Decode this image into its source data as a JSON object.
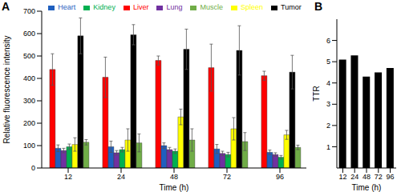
{
  "chart_data": [
    {
      "type": "bar",
      "title": "A",
      "x_label": "Time (h)",
      "y_label": "Relative fluorescence intensity",
      "categories": [
        "12",
        "24",
        "48",
        "72",
        "96"
      ],
      "ylim": [
        0,
        700
      ],
      "yticks": [
        0,
        100,
        200,
        300,
        400,
        500,
        600,
        700
      ],
      "grid": false,
      "legend": "top",
      "series": [
        {
          "name": "Liver",
          "color": "#ff0000",
          "values": [
            440,
            405,
            480,
            448,
            412
          ],
          "errors": [
            70,
            90,
            20,
            105,
            20
          ]
        },
        {
          "name": "Heart",
          "color": "#1f5fbf",
          "values": [
            88,
            95,
            100,
            85,
            70
          ],
          "errors": [
            15,
            25,
            12,
            20,
            10
          ]
        },
        {
          "name": "Lung",
          "color": "#7030a0",
          "values": [
            78,
            68,
            82,
            65,
            60
          ],
          "errors": [
            10,
            10,
            10,
            10,
            8
          ]
        },
        {
          "name": "Kidney",
          "color": "#00b050",
          "values": [
            95,
            82,
            75,
            60,
            48
          ],
          "errors": [
            12,
            10,
            10,
            10,
            8
          ]
        },
        {
          "name": "Spleen",
          "color": "#ffff00",
          "values": [
            105,
            125,
            228,
            175,
            148
          ],
          "errors": [
            30,
            50,
            35,
            50,
            20
          ]
        },
        {
          "name": "Tumor",
          "color": "#000000",
          "values": [
            590,
            595,
            530,
            525,
            428
          ],
          "errors": [
            80,
            45,
            90,
            110,
            75
          ]
        },
        {
          "name": "Muscle",
          "color": "#70ad47",
          "values": [
            115,
            112,
            125,
            118,
            92
          ],
          "errors": [
            12,
            40,
            50,
            40,
            10
          ]
        }
      ]
    },
    {
      "type": "bar",
      "title": "B",
      "x_label": "Time (h)",
      "y_label": "TTR",
      "categories": [
        "12",
        "24",
        "48",
        "72",
        "96"
      ],
      "ylim": [
        0,
        7
      ],
      "yticks": [
        1,
        2,
        3,
        4,
        5,
        6
      ],
      "grid": false,
      "values": [
        5.1,
        5.3,
        4.3,
        4.5,
        4.7
      ],
      "color": "#000000"
    }
  ]
}
